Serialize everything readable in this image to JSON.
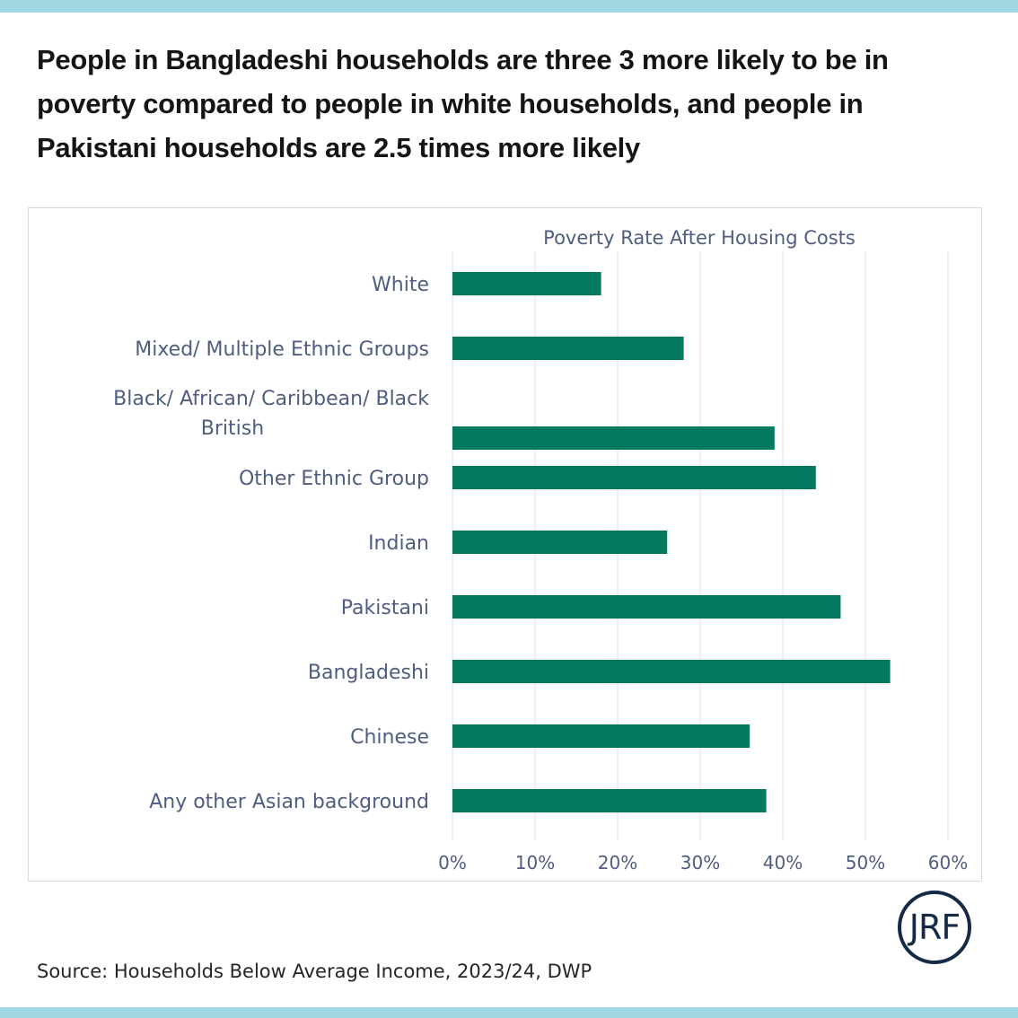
{
  "headline": "People in Bangladeshi households are three 3 more likely to be in poverty compared to people in white households, and people in Pakistani households are 2.5 times more likely",
  "source": "Source: Households Below Average Income, 2023/24, DWP",
  "logo": "JRF",
  "colors": {
    "bar": "#037960",
    "band": "#9fd7e3",
    "label": "#4e5d80",
    "grid": "#d9dfe8"
  },
  "chart_data": {
    "type": "bar",
    "orientation": "horizontal",
    "title": "Poverty Rate After Housing Costs",
    "xlabel": "",
    "ylabel": "",
    "categories": [
      "White",
      "Mixed/ Multiple Ethnic Groups",
      "Black/ African/ Caribbean/ Black British",
      "Other Ethnic Group",
      "Indian",
      "Pakistani",
      "Bangladeshi",
      "Chinese",
      "Any other Asian background"
    ],
    "category_lines": [
      [
        "White"
      ],
      [
        "Mixed/ Multiple Ethnic Groups"
      ],
      [
        "Black/ African/ Caribbean/ Black",
        "British"
      ],
      [
        "Other Ethnic Group"
      ],
      [
        "Indian"
      ],
      [
        "Pakistani"
      ],
      [
        "Bangladeshi"
      ],
      [
        "Chinese"
      ],
      [
        "Any other Asian background"
      ]
    ],
    "values": [
      18,
      28,
      39,
      44,
      26,
      47,
      53,
      36,
      38
    ],
    "unit": "%",
    "xlim": [
      0,
      60
    ],
    "xticks": [
      0,
      10,
      20,
      30,
      40,
      50,
      60
    ],
    "xtick_labels": [
      "0%",
      "10%",
      "20%",
      "30%",
      "40%",
      "50%",
      "60%"
    ],
    "grid": "vertical",
    "legend": "none"
  }
}
